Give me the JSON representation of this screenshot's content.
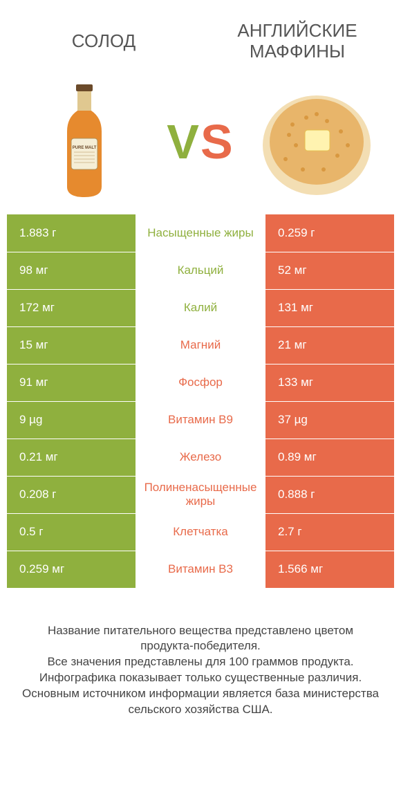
{
  "colors": {
    "left": "#8fb03e",
    "right": "#e86a4a",
    "text": "#555555",
    "footer": "#444444",
    "bg": "#ffffff"
  },
  "typography": {
    "title_fontsize": 26,
    "cell_fontsize": 17,
    "vs_fontsize": 70,
    "footer_fontsize": 17
  },
  "header": {
    "left_title": "СОЛОД",
    "right_title": "АНГЛИЙСКИЕ МАФФИНЫ",
    "vs_v": "V",
    "vs_s": "S"
  },
  "rows": [
    {
      "left": "1.883 г",
      "label": "Насыщенные жиры",
      "right": "0.259 г",
      "winner": "left"
    },
    {
      "left": "98 мг",
      "label": "Кальций",
      "right": "52 мг",
      "winner": "left"
    },
    {
      "left": "172 мг",
      "label": "Калий",
      "right": "131 мг",
      "winner": "left"
    },
    {
      "left": "15 мг",
      "label": "Магний",
      "right": "21 мг",
      "winner": "right"
    },
    {
      "left": "91 мг",
      "label": "Фосфор",
      "right": "133 мг",
      "winner": "right"
    },
    {
      "left": "9 µg",
      "label": "Витамин B9",
      "right": "37 µg",
      "winner": "right"
    },
    {
      "left": "0.21 мг",
      "label": "Железо",
      "right": "0.89 мг",
      "winner": "right"
    },
    {
      "left": "0.208 г",
      "label": "Полиненасыщенные жиры",
      "right": "0.888 г",
      "winner": "right"
    },
    {
      "left": "0.5 г",
      "label": "Клетчатка",
      "right": "2.7 г",
      "winner": "right"
    },
    {
      "left": "0.259 мг",
      "label": "Витамин B3",
      "right": "1.566 мг",
      "winner": "right"
    }
  ],
  "footer": {
    "line1": "Название питательного вещества представлено цветом продукта-победителя.",
    "line2": "Все значения представлены для 100 граммов продукта.",
    "line3": "Инфографика показывает только существенные различия.",
    "line4": "Основным источником информации является база министерства сельского хозяйства США."
  }
}
